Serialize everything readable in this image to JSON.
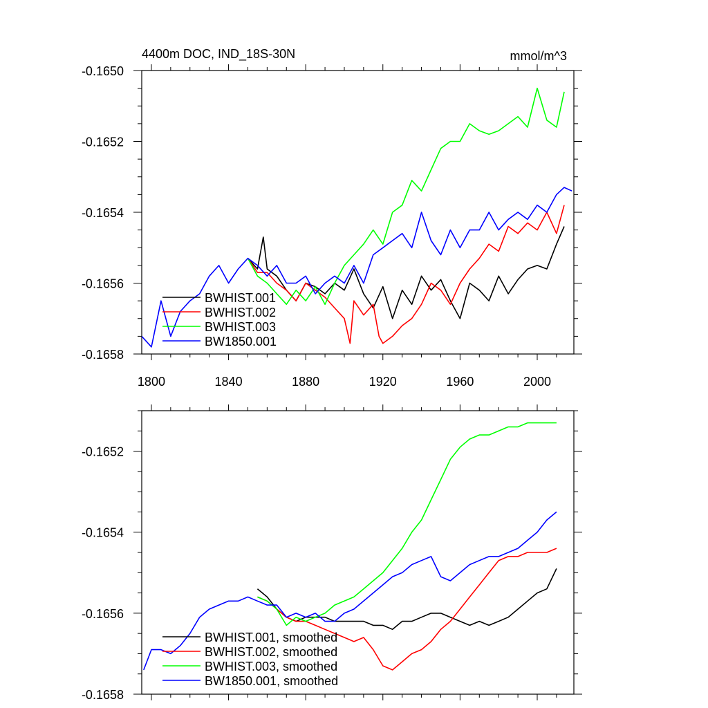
{
  "chart_data": [
    {
      "type": "line",
      "title_left": "4400m DOC, IND_18S-30N",
      "title_right": "mmol/m^3",
      "xlim": [
        1795,
        2019
      ],
      "ylim": [
        -0.1658,
        -0.165
      ],
      "xticks": [
        1800,
        1840,
        1880,
        1920,
        1960,
        2000
      ],
      "xtick_labels": [
        "1800",
        "1840",
        "1880",
        "1920",
        "1960",
        "2000"
      ],
      "yticks": [
        -0.165,
        -0.1652,
        -0.1654,
        -0.1656,
        -0.1658
      ],
      "ytick_labels": [
        "-0.1650",
        "-0.1652",
        "-0.1654",
        "-0.1656",
        "-0.1658"
      ],
      "legend_position": "lower-left",
      "series": [
        {
          "name": "BWHIST.001",
          "color": "#000000",
          "x": [
            1850,
            1855,
            1858,
            1860,
            1865,
            1870,
            1875,
            1880,
            1885,
            1890,
            1895,
            1900,
            1905,
            1910,
            1915,
            1920,
            1925,
            1930,
            1935,
            1940,
            1945,
            1950,
            1955,
            1960,
            1965,
            1970,
            1975,
            1980,
            1985,
            1990,
            1995,
            2000,
            2005,
            2010,
            2014
          ],
          "values": [
            -0.16553,
            -0.16556,
            -0.16547,
            -0.16556,
            -0.16558,
            -0.16562,
            -0.16565,
            -0.1656,
            -0.16561,
            -0.16563,
            -0.1656,
            -0.16562,
            -0.16556,
            -0.16563,
            -0.16567,
            -0.16561,
            -0.1657,
            -0.16562,
            -0.16566,
            -0.16558,
            -0.16562,
            -0.16559,
            -0.16565,
            -0.1657,
            -0.1656,
            -0.16562,
            -0.16565,
            -0.16558,
            -0.16563,
            -0.16559,
            -0.16556,
            -0.16555,
            -0.16556,
            -0.16549,
            -0.16544
          ]
        },
        {
          "name": "BWHIST.002",
          "color": "#ff0000",
          "x": [
            1850,
            1855,
            1860,
            1865,
            1870,
            1875,
            1880,
            1885,
            1890,
            1895,
            1900,
            1903,
            1905,
            1910,
            1915,
            1918,
            1920,
            1925,
            1930,
            1935,
            1940,
            1945,
            1950,
            1955,
            1960,
            1965,
            1970,
            1975,
            1980,
            1985,
            1990,
            1995,
            2000,
            2005,
            2010,
            2014
          ],
          "values": [
            -0.16553,
            -0.16557,
            -0.16557,
            -0.1656,
            -0.16562,
            -0.16565,
            -0.1656,
            -0.16562,
            -0.16564,
            -0.16567,
            -0.1657,
            -0.16577,
            -0.16565,
            -0.16569,
            -0.16566,
            -0.16575,
            -0.16577,
            -0.16575,
            -0.16572,
            -0.1657,
            -0.16566,
            -0.1656,
            -0.16562,
            -0.16566,
            -0.1656,
            -0.16556,
            -0.16553,
            -0.16549,
            -0.16551,
            -0.16544,
            -0.16546,
            -0.16543,
            -0.16545,
            -0.1654,
            -0.16546,
            -0.16538
          ]
        },
        {
          "name": "BWHIST.003",
          "color": "#00ff00",
          "x": [
            1850,
            1855,
            1860,
            1865,
            1870,
            1875,
            1880,
            1885,
            1890,
            1895,
            1900,
            1905,
            1910,
            1915,
            1920,
            1925,
            1930,
            1935,
            1940,
            1945,
            1950,
            1955,
            1960,
            1965,
            1970,
            1975,
            1980,
            1985,
            1990,
            1995,
            2000,
            2005,
            2010,
            2014
          ],
          "values": [
            -0.16553,
            -0.16558,
            -0.1656,
            -0.16563,
            -0.16566,
            -0.16562,
            -0.16565,
            -0.16561,
            -0.16566,
            -0.1656,
            -0.16555,
            -0.16552,
            -0.16549,
            -0.16545,
            -0.16549,
            -0.1654,
            -0.16538,
            -0.16531,
            -0.16534,
            -0.16528,
            -0.16522,
            -0.1652,
            -0.1652,
            -0.16515,
            -0.16517,
            -0.16518,
            -0.16517,
            -0.16515,
            -0.16513,
            -0.16516,
            -0.16505,
            -0.16514,
            -0.16516,
            -0.16506
          ]
        },
        {
          "name": "BW1850.001",
          "color": "#0000ff",
          "x": [
            1795,
            1800,
            1805,
            1810,
            1815,
            1820,
            1825,
            1830,
            1835,
            1840,
            1845,
            1850,
            1855,
            1860,
            1865,
            1870,
            1875,
            1880,
            1885,
            1890,
            1895,
            1900,
            1905,
            1910,
            1915,
            1920,
            1925,
            1930,
            1935,
            1940,
            1945,
            1950,
            1955,
            1960,
            1965,
            1970,
            1975,
            1980,
            1985,
            1990,
            1995,
            2000,
            2005,
            2010,
            2014,
            2018
          ],
          "values": [
            -0.16575,
            -0.16578,
            -0.16565,
            -0.16575,
            -0.16568,
            -0.16565,
            -0.16563,
            -0.16558,
            -0.16555,
            -0.1656,
            -0.16556,
            -0.16553,
            -0.16555,
            -0.16558,
            -0.16555,
            -0.1656,
            -0.1656,
            -0.16558,
            -0.16563,
            -0.1656,
            -0.16558,
            -0.1656,
            -0.16555,
            -0.1656,
            -0.16552,
            -0.1655,
            -0.16548,
            -0.16546,
            -0.1655,
            -0.1654,
            -0.16548,
            -0.16552,
            -0.16545,
            -0.1655,
            -0.16545,
            -0.16545,
            -0.1654,
            -0.16545,
            -0.16542,
            -0.1654,
            -0.16542,
            -0.16538,
            -0.1654,
            -0.16535,
            -0.16533,
            -0.16534
          ]
        }
      ]
    },
    {
      "type": "line",
      "xlim": [
        1795,
        2019
      ],
      "ylim": [
        -0.1658,
        -0.1651
      ],
      "xticks": [
        1800,
        1840,
        1880,
        1920,
        1960,
        2000
      ],
      "yticks": [
        -0.1652,
        -0.1654,
        -0.1656,
        -0.1658
      ],
      "ytick_labels": [
        "-0.1652",
        "-0.1654",
        "-0.1656",
        "-0.1658"
      ],
      "legend_position": "lower-left",
      "series": [
        {
          "name": "BWHIST.001, smoothed",
          "color": "#000000",
          "x": [
            1855,
            1860,
            1865,
            1870,
            1875,
            1880,
            1885,
            1890,
            1895,
            1900,
            1905,
            1910,
            1915,
            1920,
            1925,
            1930,
            1935,
            1940,
            1945,
            1950,
            1955,
            1960,
            1965,
            1970,
            1975,
            1980,
            1985,
            1990,
            1995,
            2000,
            2005,
            2010
          ],
          "values": [
            -0.16554,
            -0.16556,
            -0.16559,
            -0.16561,
            -0.16562,
            -0.16561,
            -0.16561,
            -0.16561,
            -0.16562,
            -0.16562,
            -0.16562,
            -0.16562,
            -0.16563,
            -0.16563,
            -0.16564,
            -0.16562,
            -0.16562,
            -0.16561,
            -0.1656,
            -0.1656,
            -0.16561,
            -0.16562,
            -0.16563,
            -0.16562,
            -0.16563,
            -0.16562,
            -0.16561,
            -0.16559,
            -0.16557,
            -0.16555,
            -0.16554,
            -0.16549
          ]
        },
        {
          "name": "BWHIST.002, smoothed",
          "color": "#ff0000",
          "x": [
            1855,
            1860,
            1865,
            1870,
            1875,
            1880,
            1885,
            1890,
            1895,
            1900,
            1905,
            1910,
            1915,
            1920,
            1925,
            1930,
            1935,
            1940,
            1945,
            1950,
            1955,
            1960,
            1965,
            1970,
            1975,
            1980,
            1985,
            1990,
            1995,
            2000,
            2005,
            2010
          ],
          "values": [
            -0.16556,
            -0.16557,
            -0.16559,
            -0.16561,
            -0.16562,
            -0.16562,
            -0.16563,
            -0.16564,
            -0.16565,
            -0.16566,
            -0.16567,
            -0.16566,
            -0.16569,
            -0.16573,
            -0.16574,
            -0.16572,
            -0.1657,
            -0.16569,
            -0.16567,
            -0.16564,
            -0.16562,
            -0.16559,
            -0.16556,
            -0.16553,
            -0.1655,
            -0.16547,
            -0.16546,
            -0.16546,
            -0.16545,
            -0.16545,
            -0.16545,
            -0.16544
          ]
        },
        {
          "name": "BWHIST.003, smoothed",
          "color": "#00ff00",
          "x": [
            1855,
            1860,
            1865,
            1870,
            1875,
            1880,
            1885,
            1890,
            1895,
            1900,
            1905,
            1910,
            1915,
            1920,
            1925,
            1930,
            1935,
            1940,
            1945,
            1950,
            1955,
            1960,
            1965,
            1970,
            1975,
            1980,
            1985,
            1990,
            1995,
            2000,
            2005,
            2010
          ],
          "values": [
            -0.16556,
            -0.16557,
            -0.16559,
            -0.16563,
            -0.16561,
            -0.16562,
            -0.16561,
            -0.1656,
            -0.16558,
            -0.16557,
            -0.16556,
            -0.16554,
            -0.16552,
            -0.1655,
            -0.16547,
            -0.16544,
            -0.1654,
            -0.16537,
            -0.16532,
            -0.16527,
            -0.16522,
            -0.16519,
            -0.16517,
            -0.16516,
            -0.16516,
            -0.16515,
            -0.16514,
            -0.16514,
            -0.16513,
            -0.16513,
            -0.16513,
            -0.16513
          ]
        },
        {
          "name": "BW1850.001, smoothed",
          "color": "#0000ff",
          "x": [
            1796,
            1800,
            1805,
            1810,
            1815,
            1820,
            1825,
            1830,
            1835,
            1840,
            1845,
            1850,
            1855,
            1860,
            1865,
            1870,
            1875,
            1880,
            1885,
            1890,
            1895,
            1900,
            1905,
            1910,
            1915,
            1920,
            1925,
            1930,
            1935,
            1940,
            1945,
            1950,
            1955,
            1960,
            1965,
            1970,
            1975,
            1980,
            1985,
            1990,
            1995,
            2000,
            2005,
            2010
          ],
          "values": [
            -0.16574,
            -0.16569,
            -0.16569,
            -0.1657,
            -0.16568,
            -0.16565,
            -0.16561,
            -0.16559,
            -0.16558,
            -0.16557,
            -0.16557,
            -0.16556,
            -0.16557,
            -0.16558,
            -0.16558,
            -0.16561,
            -0.1656,
            -0.16561,
            -0.1656,
            -0.16562,
            -0.16562,
            -0.1656,
            -0.16559,
            -0.16557,
            -0.16555,
            -0.16553,
            -0.16551,
            -0.1655,
            -0.16548,
            -0.16547,
            -0.16546,
            -0.16551,
            -0.16552,
            -0.1655,
            -0.16548,
            -0.16547,
            -0.16546,
            -0.16546,
            -0.16545,
            -0.16544,
            -0.16542,
            -0.1654,
            -0.16537,
            -0.16535
          ]
        }
      ]
    }
  ]
}
